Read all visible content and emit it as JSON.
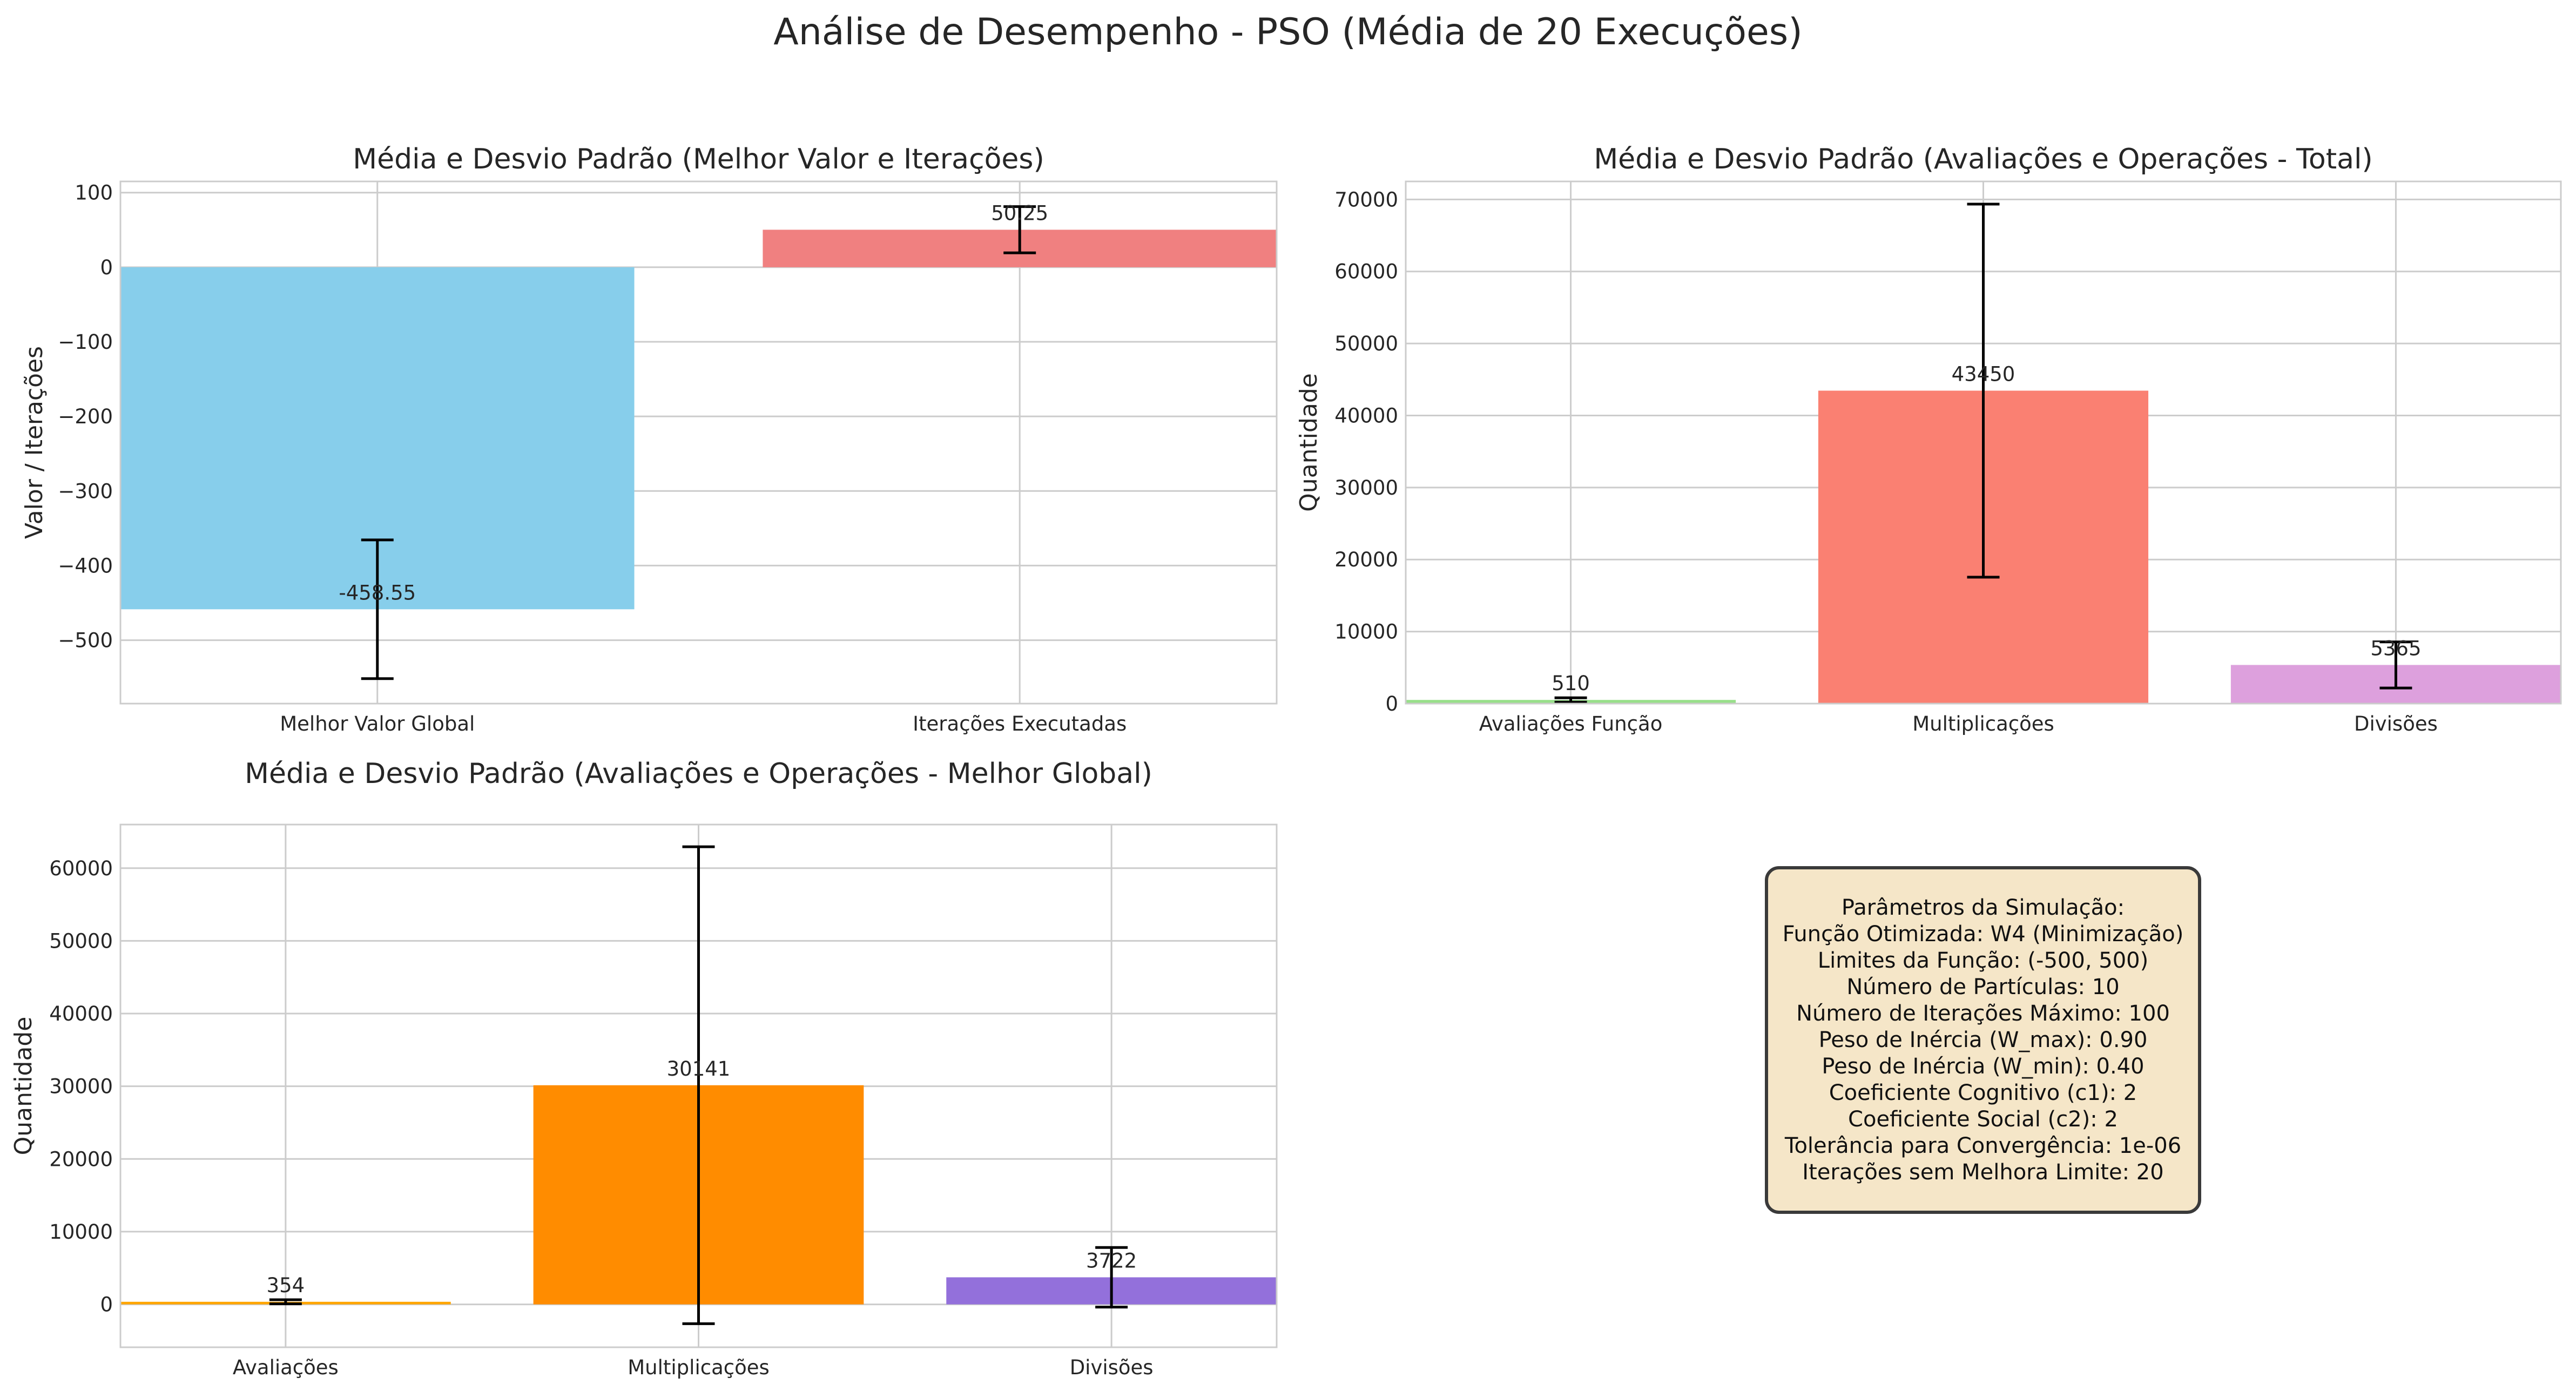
{
  "title": "Análise de Desempenho - PSO (Média de 20 Execuções)",
  "chart_data": [
    {
      "type": "bar",
      "title": "Média e Desvio Padrão (Melhor Valor e Iterações)",
      "ylabel": "Valor / Iterações",
      "xlabel": "",
      "categories": [
        "Melhor Valor Global",
        "Iterações Executadas"
      ],
      "values": [
        -458.55,
        50.25
      ],
      "errors": [
        93,
        31
      ],
      "value_labels": [
        "-458.55",
        "50.25"
      ],
      "colors": [
        "#87ceeb",
        "#f08080"
      ],
      "ylim": [
        -585,
        115
      ],
      "yticks": [
        -500,
        -400,
        -300,
        -200,
        -100,
        0,
        100
      ],
      "ytick_labels": [
        "−500",
        "−400",
        "−300",
        "−200",
        "−100",
        "0",
        "100"
      ],
      "grid": true
    },
    {
      "type": "bar",
      "title": "Média e Desvio Padrão (Avaliações e Operações - Total)",
      "ylabel": "Quantidade",
      "xlabel": "",
      "categories": [
        "Avaliações Função",
        "Multiplicações",
        "Divisões"
      ],
      "values": [
        510,
        43450,
        5365
      ],
      "errors": [
        300,
        25900,
        3200
      ],
      "value_labels": [
        "510",
        "43450",
        "5365"
      ],
      "colors": [
        "#98df8a",
        "#fa8072",
        "#dda0dd"
      ],
      "ylim": [
        0,
        72500
      ],
      "yticks": [
        0,
        10000,
        20000,
        30000,
        40000,
        50000,
        60000,
        70000
      ],
      "ytick_labels": [
        "0",
        "10000",
        "20000",
        "30000",
        "40000",
        "50000",
        "60000",
        "70000"
      ],
      "grid": true
    },
    {
      "type": "bar",
      "title": "Média e Desvio Padrão (Avaliações e Operações - Melhor Global)",
      "ylabel": "Quantidade",
      "xlabel": "",
      "categories": [
        "Avaliações",
        "Multiplicações",
        "Divisões"
      ],
      "values": [
        354,
        30141,
        3722
      ],
      "errors": [
        280,
        32800,
        4100
      ],
      "value_labels": [
        "354",
        "30141",
        "3722"
      ],
      "colors": [
        "#ffa500",
        "#ff8c00",
        "#9370db"
      ],
      "ylim": [
        -5900,
        66000
      ],
      "yticks": [
        0,
        10000,
        20000,
        30000,
        40000,
        50000,
        60000
      ],
      "ytick_labels": [
        "0",
        "10000",
        "20000",
        "30000",
        "40000",
        "50000",
        "60000"
      ],
      "grid": true
    }
  ],
  "params": [
    "Parâmetros da Simulação:",
    "Função Otimizada: W4 (Minimização)",
    "Limites da Função: (-500, 500)",
    "Número de Partículas: 10",
    "Número de Iterações Máximo: 100",
    "Peso de Inércia (W_max): 0.90",
    "Peso de Inércia (W_min): 0.40",
    "Coeficiente Cognitivo (c1): 2",
    "Coeficiente Social (c2): 2",
    "Tolerância para Convergência: 1e-06",
    "Iterações sem Melhora Limite: 20"
  ],
  "params_box_color": "#f5e6c8"
}
